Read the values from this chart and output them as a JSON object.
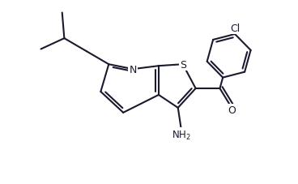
{
  "bg_color": "#ffffff",
  "bond_color": "#1a1a2e",
  "atom_color": "#1a1a2e",
  "line_width": 1.5,
  "figsize": [
    3.68,
    2.28
  ],
  "dpi": 100,
  "xlim": [
    0,
    9.2
  ],
  "ylim": [
    0,
    5.7
  ]
}
